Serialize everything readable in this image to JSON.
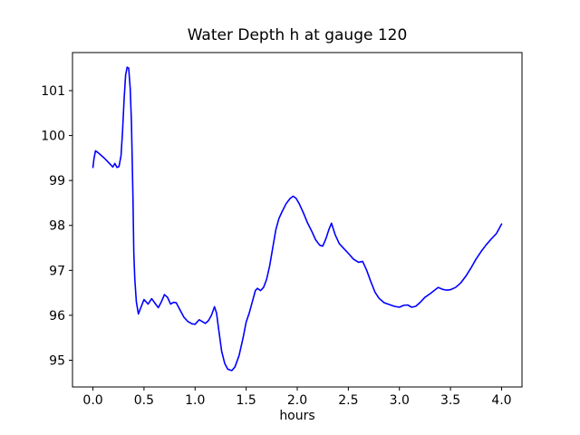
{
  "figure": {
    "background": "#ffffff",
    "spine_color": "#000000"
  },
  "chart_data": {
    "type": "line",
    "title": "Water Depth h at gauge 120",
    "xlabel": "hours",
    "ylabel": "",
    "grid": false,
    "legend": null,
    "xlim": [
      -0.2,
      4.2
    ],
    "ylim": [
      94.405,
      101.847
    ],
    "xticks": [
      0.0,
      0.5,
      1.0,
      1.5,
      2.0,
      2.5,
      3.0,
      3.5,
      4.0
    ],
    "xtick_labels": [
      "0.0",
      "0.5",
      "1.0",
      "1.5",
      "2.0",
      "2.5",
      "3.0",
      "3.5",
      "4.0"
    ],
    "yticks": [
      95,
      96,
      97,
      98,
      99,
      100,
      101
    ],
    "ytick_labels": [
      "95",
      "96",
      "97",
      "98",
      "99",
      "100",
      "101"
    ],
    "series": [
      {
        "name": "water-depth-h",
        "color": "#0000ff",
        "linewidth": 1.6,
        "x": [
          0.0,
          0.01,
          0.025,
          0.05,
          0.08,
          0.11,
          0.14,
          0.17,
          0.195,
          0.215,
          0.235,
          0.255,
          0.275,
          0.29,
          0.305,
          0.32,
          0.335,
          0.35,
          0.365,
          0.377,
          0.385,
          0.392,
          0.4,
          0.41,
          0.425,
          0.445,
          0.465,
          0.5,
          0.54,
          0.575,
          0.61,
          0.64,
          0.67,
          0.7,
          0.73,
          0.76,
          0.79,
          0.815,
          0.85,
          0.89,
          0.93,
          0.97,
          1.0,
          1.04,
          1.07,
          1.1,
          1.13,
          1.16,
          1.19,
          1.21,
          1.23,
          1.26,
          1.29,
          1.32,
          1.36,
          1.39,
          1.43,
          1.47,
          1.5,
          1.53,
          1.56,
          1.59,
          1.61,
          1.64,
          1.67,
          1.7,
          1.73,
          1.76,
          1.79,
          1.82,
          1.85,
          1.89,
          1.93,
          1.96,
          1.99,
          2.02,
          2.06,
          2.1,
          2.14,
          2.18,
          2.22,
          2.25,
          2.28,
          2.31,
          2.335,
          2.37,
          2.41,
          2.45,
          2.5,
          2.55,
          2.6,
          2.64,
          2.68,
          2.72,
          2.76,
          2.8,
          2.85,
          2.9,
          2.95,
          3.0,
          3.04,
          3.08,
          3.12,
          3.16,
          3.2,
          3.25,
          3.3,
          3.34,
          3.38,
          3.42,
          3.46,
          3.5,
          3.55,
          3.6,
          3.65,
          3.7,
          3.75,
          3.8,
          3.85,
          3.9,
          3.95,
          4.0
        ],
        "y": [
          99.29,
          99.48,
          99.66,
          99.62,
          99.56,
          99.5,
          99.43,
          99.36,
          99.3,
          99.38,
          99.29,
          99.31,
          99.55,
          100.1,
          100.8,
          101.35,
          101.52,
          101.5,
          101.05,
          100.3,
          99.4,
          98.6,
          97.4,
          96.8,
          96.3,
          96.03,
          96.15,
          96.35,
          96.25,
          96.37,
          96.26,
          96.17,
          96.3,
          96.46,
          96.4,
          96.25,
          96.29,
          96.28,
          96.13,
          95.96,
          95.86,
          95.81,
          95.8,
          95.9,
          95.86,
          95.82,
          95.88,
          96.0,
          96.19,
          96.05,
          95.7,
          95.2,
          94.93,
          94.8,
          94.77,
          94.85,
          95.1,
          95.5,
          95.85,
          96.05,
          96.3,
          96.55,
          96.6,
          96.55,
          96.62,
          96.8,
          97.1,
          97.5,
          97.9,
          98.15,
          98.3,
          98.48,
          98.6,
          98.65,
          98.6,
          98.48,
          98.28,
          98.06,
          97.88,
          97.68,
          97.56,
          97.54,
          97.7,
          97.91,
          98.05,
          97.8,
          97.6,
          97.5,
          97.38,
          97.25,
          97.18,
          97.2,
          97.0,
          96.75,
          96.52,
          96.38,
          96.28,
          96.24,
          96.2,
          96.18,
          96.22,
          96.23,
          96.18,
          96.2,
          96.28,
          96.4,
          96.48,
          96.55,
          96.62,
          96.58,
          96.56,
          96.57,
          96.62,
          96.72,
          96.87,
          97.05,
          97.25,
          97.42,
          97.57,
          97.7,
          97.82,
          98.03
        ]
      }
    ]
  }
}
